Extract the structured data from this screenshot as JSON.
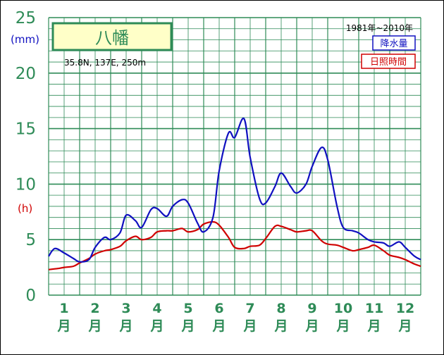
{
  "chart_data": {
    "type": "line",
    "title": "八幡",
    "location": "35.8N, 137E, 250m",
    "period": "1981年~2010年",
    "y_unit_precip": "(mm)",
    "y_unit_sun": "(h)",
    "ylim": [
      0,
      25
    ],
    "yticks": [
      "0",
      "5",
      "10",
      "15",
      "20",
      "25"
    ],
    "months": [
      "1",
      "2",
      "3",
      "4",
      "5",
      "6",
      "7",
      "8",
      "9",
      "10",
      "11",
      "12"
    ],
    "month_suffix": "月",
    "xlim": [
      0,
      12
    ],
    "grid": true,
    "legend_position": "top-right",
    "series": [
      {
        "name": "降水量",
        "color": "#1010c0",
        "x": [
          0,
          0.2,
          0.5,
          0.8,
          1.0,
          1.3,
          1.5,
          1.8,
          2.0,
          2.3,
          2.5,
          2.8,
          3.0,
          3.3,
          3.5,
          3.8,
          4.0,
          4.3,
          4.5,
          4.8,
          5.0,
          5.3,
          5.5,
          5.8,
          6.0,
          6.3,
          6.5,
          6.8,
          7.0,
          7.3,
          7.5,
          7.8,
          8.0,
          8.3,
          8.5,
          8.8,
          9.0,
          9.3,
          9.5,
          9.8,
          10.0,
          10.3,
          10.5,
          10.8,
          11.0,
          11.3,
          11.5,
          11.8,
          12.0
        ],
        "values": [
          3.5,
          4.2,
          3.8,
          3.3,
          3.0,
          3.2,
          4.3,
          5.2,
          5.0,
          5.6,
          7.2,
          6.7,
          6.1,
          7.7,
          7.8,
          7.1,
          8.0,
          8.6,
          8.3,
          6.5,
          5.7,
          7.0,
          11.2,
          14.6,
          14.2,
          15.9,
          12.4,
          8.7,
          8.3,
          9.8,
          11.0,
          9.8,
          9.2,
          10.0,
          11.6,
          13.3,
          12.2,
          8.0,
          6.1,
          5.8,
          5.6,
          5.0,
          4.8,
          4.7,
          4.4,
          4.8,
          4.3,
          3.5,
          3.2
        ]
      },
      {
        "name": "日照時間",
        "color": "#d00000",
        "x": [
          0,
          0.3,
          0.5,
          0.8,
          1.0,
          1.3,
          1.5,
          1.8,
          2.0,
          2.3,
          2.5,
          2.8,
          3.0,
          3.3,
          3.5,
          3.8,
          4.0,
          4.3,
          4.5,
          4.8,
          5.0,
          5.3,
          5.5,
          5.8,
          6.0,
          6.3,
          6.5,
          6.8,
          7.0,
          7.3,
          7.5,
          7.8,
          8.0,
          8.3,
          8.5,
          8.8,
          9.0,
          9.3,
          9.5,
          9.8,
          10.0,
          10.3,
          10.5,
          10.8,
          11.0,
          11.3,
          11.5,
          11.8,
          12.0
        ],
        "values": [
          2.3,
          2.4,
          2.5,
          2.6,
          2.9,
          3.3,
          3.7,
          4.0,
          4.1,
          4.4,
          4.9,
          5.3,
          5.0,
          5.2,
          5.7,
          5.8,
          5.8,
          6.0,
          5.7,
          5.9,
          6.4,
          6.6,
          6.3,
          5.2,
          4.3,
          4.2,
          4.4,
          4.5,
          5.1,
          6.2,
          6.2,
          5.9,
          5.7,
          5.8,
          5.8,
          4.9,
          4.6,
          4.5,
          4.3,
          4.0,
          4.1,
          4.3,
          4.5,
          4.0,
          3.6,
          3.4,
          3.2,
          2.8,
          2.6
        ]
      }
    ]
  }
}
